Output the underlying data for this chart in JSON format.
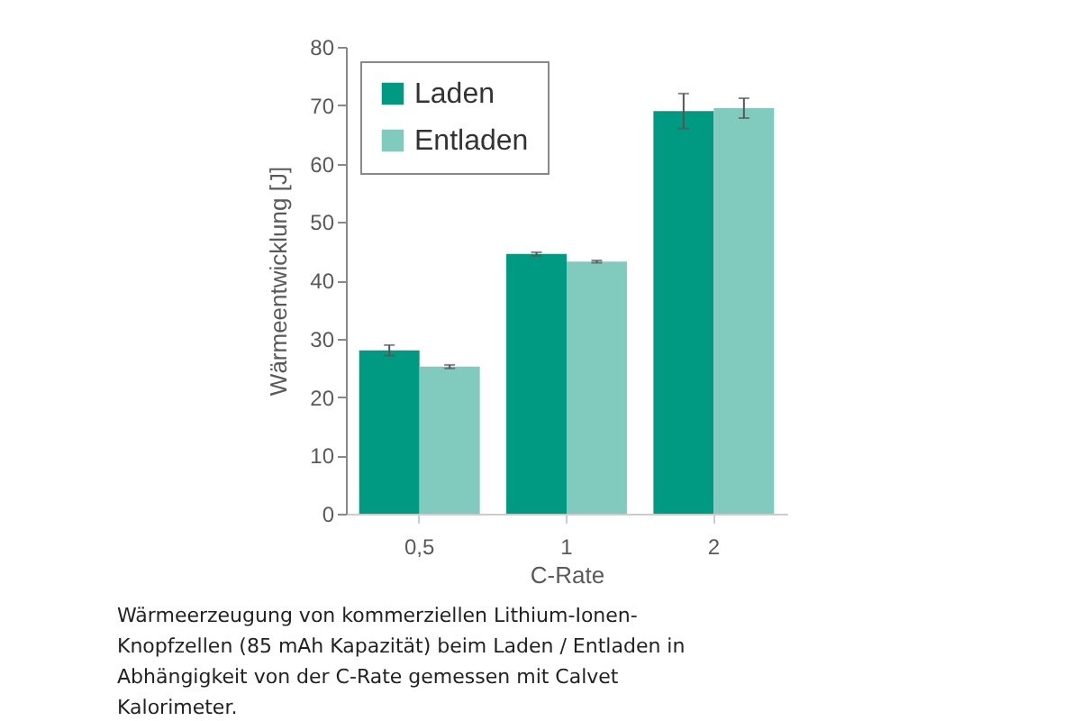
{
  "chart_data": {
    "type": "bar",
    "xlabel": "C-Rate",
    "ylabel": "Wärmeentwicklung [J]",
    "categories": [
      "0,5",
      "1",
      "2"
    ],
    "series": [
      {
        "name": "Laden",
        "color": "#009a82",
        "values": [
          28,
          44.5,
          69
        ],
        "errors": [
          0.9,
          0.3,
          3
        ]
      },
      {
        "name": "Entladen",
        "color": "#80cabe",
        "values": [
          25.2,
          43.2,
          69.5
        ],
        "errors": [
          0.3,
          0.2,
          1.7
        ]
      }
    ],
    "ylim": [
      0,
      80
    ],
    "yticks": [
      0,
      10,
      20,
      30,
      40,
      50,
      60,
      70,
      80
    ],
    "grid": false,
    "legend": "top left",
    "annotations": [
      "Wärmeerzeugung von kommerziellen Lithium-Ionen-Knopfzellen (85 mAh Kapazität) beim Laden / Entladen in Abhängigkeit von der C-Rate gemessen mit Calvet Kalorimeter."
    ]
  }
}
